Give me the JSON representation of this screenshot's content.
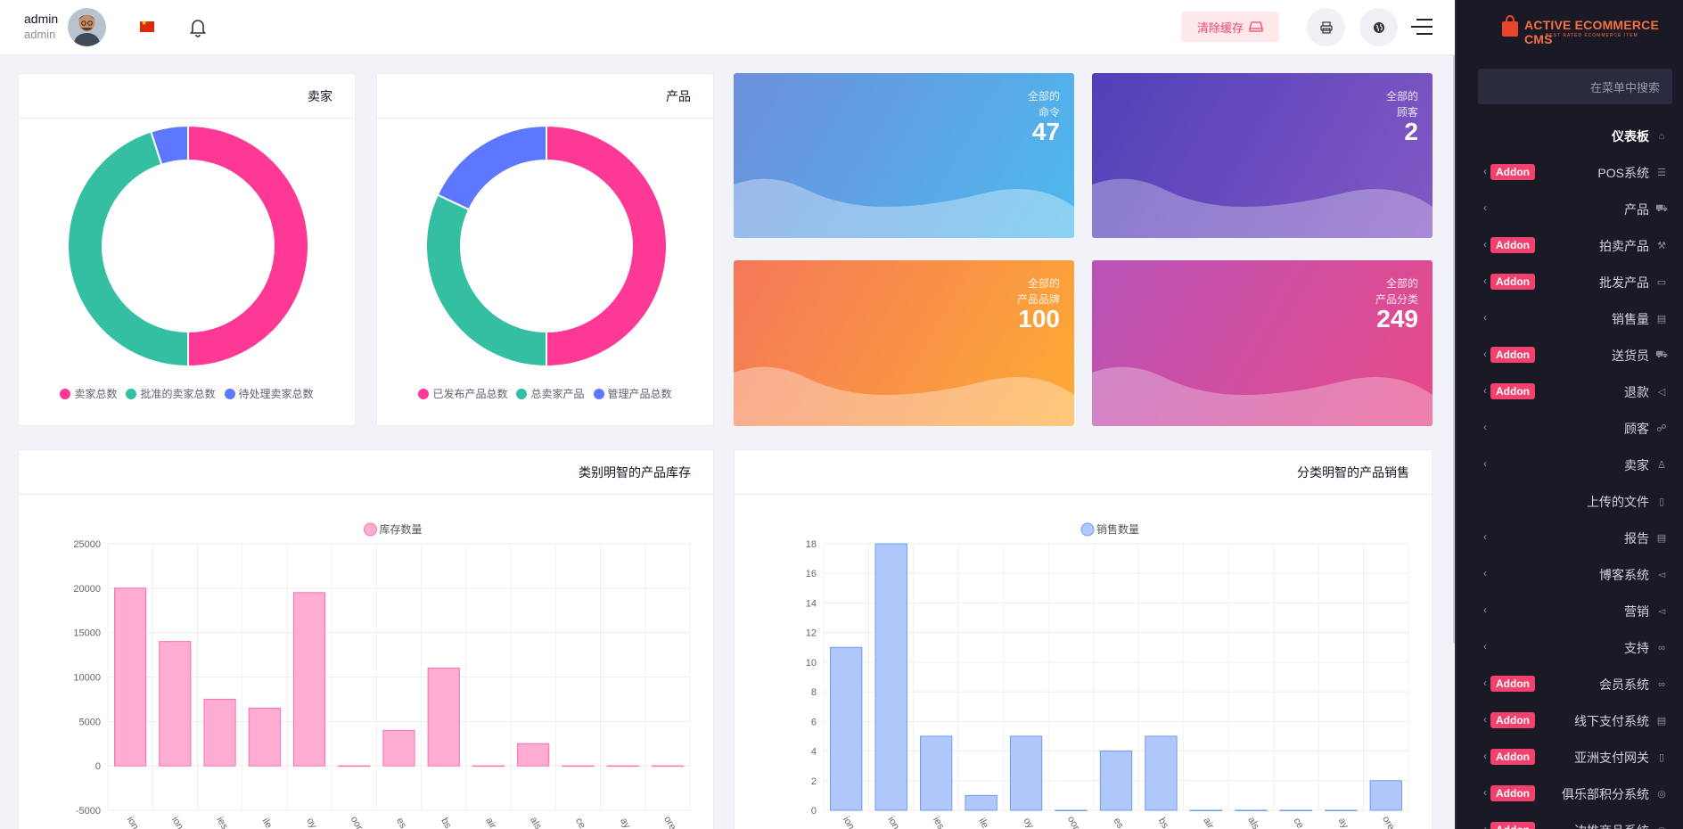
{
  "topbar": {
    "user_name": "admin",
    "user_role": "admin",
    "clear_cache_label": "清除缓存"
  },
  "cards": {
    "sellers": {
      "title": "卖家",
      "legend": [
        "卖家总数",
        "批准的卖家总数",
        "待处理卖家总数"
      ]
    },
    "products": {
      "title": "产品",
      "legend": [
        "已发布产品总数",
        "总卖家产品",
        "管理产品总数"
      ]
    },
    "stock": {
      "title": "类别明智的产品库存"
    },
    "sales": {
      "title": "分类明智的产品销售"
    }
  },
  "stats": [
    {
      "label1": "全部的",
      "label2": "命令",
      "value": "47"
    },
    {
      "label1": "全部的",
      "label2": "顾客",
      "value": "2"
    },
    {
      "label1": "全部的",
      "label2": "产品品牌",
      "value": "100"
    },
    {
      "label1": "全部的",
      "label2": "产品分类",
      "value": "249"
    }
  ],
  "sidebar": {
    "brand": "ACTIVE ECOMMERCE CMS",
    "brand_sub": "BEST RATED ECOMMERCE ITEM",
    "search_placeholder": "在菜单中搜索",
    "addon_label": "Addon",
    "items": [
      {
        "label": "仪表板",
        "icon": "home-icon",
        "chevron": false,
        "addon": false
      },
      {
        "label": "POS系统",
        "icon": "list-icon",
        "chevron": true,
        "addon": true
      },
      {
        "label": "产品",
        "icon": "cart-icon",
        "chevron": true,
        "addon": false
      },
      {
        "label": "拍卖产品",
        "icon": "gavel-icon",
        "chevron": true,
        "addon": true
      },
      {
        "label": "批发产品",
        "icon": "box-icon",
        "chevron": true,
        "addon": true
      },
      {
        "label": "销售量",
        "icon": "money-icon",
        "chevron": true,
        "addon": false
      },
      {
        "label": "送货员",
        "icon": "truck-icon",
        "chevron": true,
        "addon": true
      },
      {
        "label": "退款",
        "icon": "backward-icon",
        "chevron": true,
        "addon": true
      },
      {
        "label": "顾客",
        "icon": "users-icon",
        "chevron": true,
        "addon": false
      },
      {
        "label": "卖家",
        "icon": "user-icon",
        "chevron": true,
        "addon": false
      },
      {
        "label": "上传的文件",
        "icon": "folder-icon",
        "chevron": false,
        "addon": false
      },
      {
        "label": "报告",
        "icon": "file-icon",
        "chevron": true,
        "addon": false
      },
      {
        "label": "博客系统",
        "icon": "bullhorn-icon",
        "chevron": true,
        "addon": false
      },
      {
        "label": "营销",
        "icon": "bullhorn-icon",
        "chevron": true,
        "addon": false
      },
      {
        "label": "支持",
        "icon": "link-icon",
        "chevron": true,
        "addon": false
      },
      {
        "label": "会员系统",
        "icon": "link-icon",
        "chevron": true,
        "addon": true
      },
      {
        "label": "线下支付系统",
        "icon": "money-icon",
        "chevron": true,
        "addon": true
      },
      {
        "label": "亚洲支付网关",
        "icon": "phone-icon",
        "chevron": true,
        "addon": true
      },
      {
        "label": "俱乐部积分系统",
        "icon": "coins-icon",
        "chevron": true,
        "addon": true
      },
      {
        "label": "边推商品系统",
        "icon": "coins-icon",
        "chevron": true,
        "addon": true
      }
    ]
  },
  "colors": {
    "pink": "#fd3995",
    "teal": "#34bfa3",
    "blue": "#5d78ff",
    "bar_pink": "#ffadd2",
    "bar_pink_border": "#f86fae",
    "bar_blue": "#b0c8fb",
    "bar_blue_border": "#6d9af3"
  },
  "chart_data": [
    {
      "type": "pie",
      "title": "卖家",
      "labels": [
        "卖家总数",
        "批准的卖家总数",
        "待处理卖家总数"
      ],
      "values": [
        50,
        45,
        5
      ],
      "colors": [
        "#fd3995",
        "#34bfa3",
        "#5d78ff"
      ]
    },
    {
      "type": "pie",
      "title": "产品",
      "labels": [
        "已发布产品总数",
        "总卖家产品",
        "管理产品总数"
      ],
      "values": [
        50,
        32,
        18
      ],
      "colors": [
        "#fd3995",
        "#34bfa3",
        "#5d78ff"
      ]
    },
    {
      "type": "bar",
      "title": "类别明智的产品库存",
      "series": [
        {
          "name": "库存数量",
          "values": [
            20000,
            14000,
            7500,
            6500,
            19500,
            0,
            4000,
            11000,
            0,
            2500,
            0,
            0,
            0
          ]
        }
      ],
      "categories": [
        "ion",
        "ion",
        "ies",
        "ile",
        "oy",
        "oor",
        "es",
        "bs",
        "air",
        "als",
        "ce",
        "ay",
        "ore"
      ],
      "ylim": [
        -5000,
        25000
      ],
      "yticks": [
        "25000",
        "20000",
        "15000",
        "10000",
        "5000",
        "0",
        "-5000"
      ],
      "grid": true
    },
    {
      "type": "bar",
      "title": "分类明智的产品销售",
      "series": [
        {
          "name": "销售数量",
          "values": [
            11,
            18,
            5,
            1,
            5,
            0,
            4,
            5,
            0,
            0,
            0,
            0,
            2
          ]
        }
      ],
      "categories": [
        "ion",
        "ion",
        "ies",
        "ile",
        "oy",
        "oor",
        "es",
        "bs",
        "air",
        "als",
        "ce",
        "ay",
        "ore"
      ],
      "ylim": [
        0,
        18
      ],
      "yticks": [
        "18",
        "16",
        "14",
        "12",
        "10",
        "8",
        "6",
        "4",
        "2",
        "0"
      ],
      "grid": true
    }
  ]
}
